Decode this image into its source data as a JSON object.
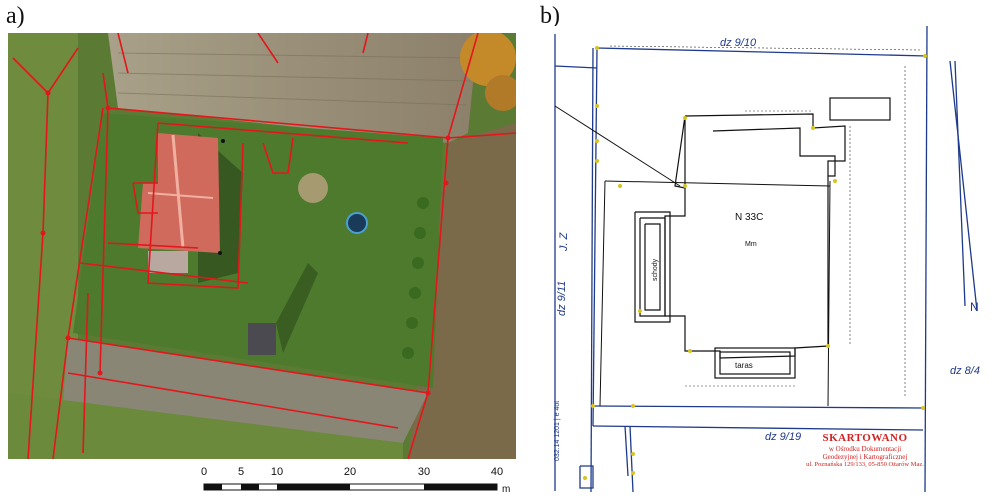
{
  "panels": {
    "a": {
      "label": "a)"
    },
    "b": {
      "label": "b)"
    }
  },
  "scale_bar": {
    "ticks": [
      "0",
      "5",
      "10",
      "20",
      "30",
      "40"
    ],
    "unit": "m"
  },
  "sketch": {
    "top_plot": "dz 9/10",
    "left_plot": "dz 9/11",
    "left_plot_suffix": "J. Z",
    "right_plot": "dz 8/4",
    "bottom_plot": "dz 9/19",
    "building_label": "N 33C",
    "building_sub": "Mm",
    "terrace_label": "taras",
    "porch_label": "schody",
    "north_label": "N",
    "side_note": "032.14 1201 | e 4ot"
  },
  "stamp": {
    "title": "SKARTOWANO",
    "line1": "w Ośrodku Dokumentacji",
    "line2": "Geodezyjnej i Kartograficznej",
    "line3": "ul. Poznańska 129/133, 05-850 Ożarów Maz."
  },
  "colors": {
    "boundary_red": "#e3161b",
    "sketch_blue": "#1e3a8a",
    "point_yellow": "#d8c41a",
    "stamp_red": "#d42020"
  }
}
